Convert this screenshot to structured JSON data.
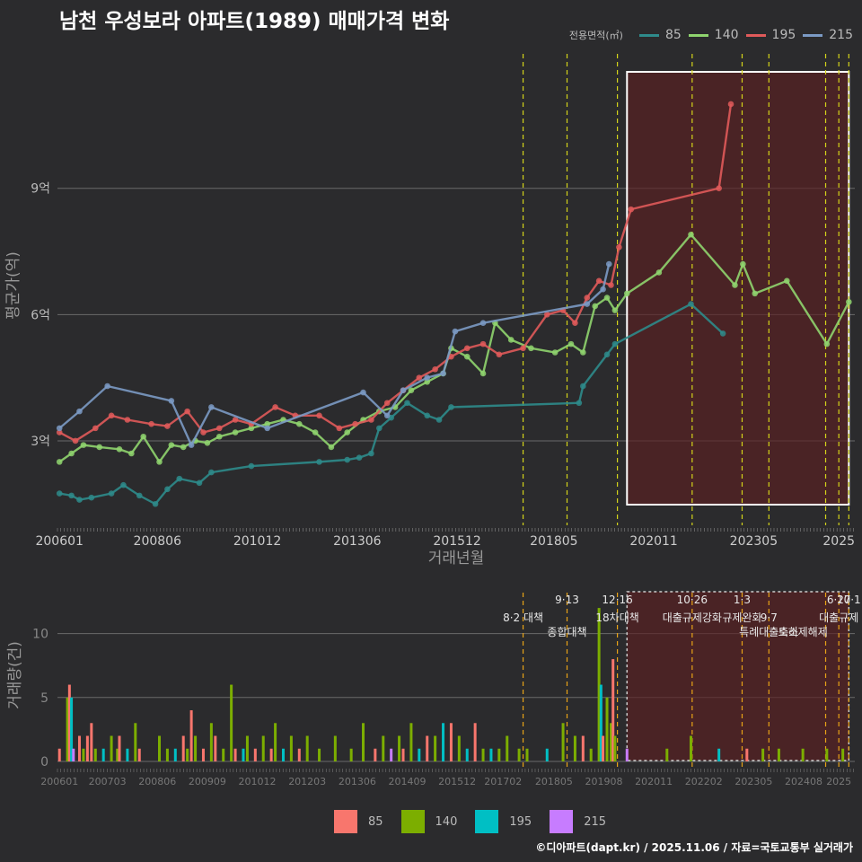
{
  "chart_data": [
    {
      "type": "line",
      "title": "남천 우성보라 아파트(1989) 매매가격 변화",
      "xlabel": "거래년월",
      "ylabel": "평균가(억)",
      "x_tick_labels": [
        "200601",
        "200806",
        "201012",
        "201306",
        "201512",
        "201805",
        "202011",
        "202305",
        "2025"
      ],
      "y_tick_labels": [
        "3억",
        "6억",
        "9억"
      ],
      "y_ticks": [
        3,
        6,
        9
      ],
      "ylim": [
        1.1,
        12.3
      ],
      "xlim": [
        2005.95,
        2025.9
      ],
      "legend_title": "전용면적(㎡)",
      "highlight_range": [
        2020.2,
        2025.75
      ],
      "policy_dates": [
        2017.6,
        2018.7,
        2019.96,
        2021.83,
        2023.08,
        2023.75,
        2025.17,
        2025.5,
        2025.75
      ],
      "series": [
        {
          "name": "85",
          "color": "#2e8b8b",
          "points": [
            [
              2006.0,
              1.75
            ],
            [
              2006.3,
              1.7
            ],
            [
              2006.5,
              1.6
            ],
            [
              2006.8,
              1.65
            ],
            [
              2007.3,
              1.75
            ],
            [
              2007.6,
              1.95
            ],
            [
              2008.0,
              1.7
            ],
            [
              2008.4,
              1.5
            ],
            [
              2008.7,
              1.85
            ],
            [
              2009.0,
              2.1
            ],
            [
              2009.5,
              2.0
            ],
            [
              2009.8,
              2.25
            ],
            [
              2010.8,
              2.4
            ],
            [
              2012.5,
              2.5
            ],
            [
              2013.2,
              2.55
            ],
            [
              2013.5,
              2.6
            ],
            [
              2013.8,
              2.7
            ],
            [
              2014.0,
              3.3
            ],
            [
              2014.3,
              3.55
            ],
            [
              2014.7,
              3.9
            ],
            [
              2015.2,
              3.6
            ],
            [
              2015.5,
              3.5
            ],
            [
              2015.8,
              3.8
            ],
            [
              2019.0,
              3.9
            ],
            [
              2019.1,
              4.3
            ],
            [
              2019.7,
              5.05
            ],
            [
              2019.9,
              5.3
            ],
            [
              2021.8,
              6.25
            ],
            [
              2022.6,
              5.55
            ]
          ]
        },
        {
          "name": "140",
          "color": "#8fd46e",
          "points": [
            [
              2006.0,
              2.5
            ],
            [
              2006.3,
              2.7
            ],
            [
              2006.6,
              2.9
            ],
            [
              2007.0,
              2.85
            ],
            [
              2007.5,
              2.8
            ],
            [
              2007.8,
              2.7
            ],
            [
              2008.1,
              3.1
            ],
            [
              2008.5,
              2.5
            ],
            [
              2008.8,
              2.9
            ],
            [
              2009.1,
              2.85
            ],
            [
              2009.4,
              3.0
            ],
            [
              2009.7,
              2.95
            ],
            [
              2010.0,
              3.1
            ],
            [
              2010.4,
              3.2
            ],
            [
              2010.8,
              3.3
            ],
            [
              2011.2,
              3.4
            ],
            [
              2011.6,
              3.5
            ],
            [
              2012.0,
              3.4
            ],
            [
              2012.4,
              3.2
            ],
            [
              2012.8,
              2.85
            ],
            [
              2013.2,
              3.2
            ],
            [
              2013.6,
              3.5
            ],
            [
              2014.0,
              3.7
            ],
            [
              2014.4,
              3.8
            ],
            [
              2014.8,
              4.2
            ],
            [
              2015.2,
              4.4
            ],
            [
              2015.6,
              4.6
            ],
            [
              2015.8,
              5.2
            ],
            [
              2016.2,
              5.0
            ],
            [
              2016.6,
              4.6
            ],
            [
              2016.9,
              5.8
            ],
            [
              2017.3,
              5.4
            ],
            [
              2017.8,
              5.2
            ],
            [
              2018.4,
              5.1
            ],
            [
              2018.8,
              5.3
            ],
            [
              2019.1,
              5.1
            ],
            [
              2019.4,
              6.2
            ],
            [
              2019.7,
              6.4
            ],
            [
              2019.9,
              6.1
            ],
            [
              2020.2,
              6.5
            ],
            [
              2021.0,
              7.0
            ],
            [
              2021.8,
              7.9
            ],
            [
              2022.9,
              6.7
            ],
            [
              2023.1,
              7.2
            ],
            [
              2023.4,
              6.5
            ],
            [
              2024.2,
              6.8
            ],
            [
              2025.2,
              5.3
            ],
            [
              2025.75,
              6.3
            ]
          ]
        },
        {
          "name": "195",
          "color": "#e05a5a",
          "points": [
            [
              2006.0,
              3.2
            ],
            [
              2006.4,
              3.0
            ],
            [
              2006.9,
              3.3
            ],
            [
              2007.3,
              3.6
            ],
            [
              2007.7,
              3.5
            ],
            [
              2008.3,
              3.4
            ],
            [
              2008.7,
              3.35
            ],
            [
              2009.2,
              3.7
            ],
            [
              2009.6,
              3.2
            ],
            [
              2010.0,
              3.3
            ],
            [
              2010.4,
              3.5
            ],
            [
              2010.8,
              3.4
            ],
            [
              2011.4,
              3.8
            ],
            [
              2011.9,
              3.6
            ],
            [
              2012.5,
              3.6
            ],
            [
              2013.0,
              3.3
            ],
            [
              2013.4,
              3.4
            ],
            [
              2013.8,
              3.5
            ],
            [
              2014.2,
              3.9
            ],
            [
              2014.6,
              4.2
            ],
            [
              2015.0,
              4.5
            ],
            [
              2015.4,
              4.7
            ],
            [
              2015.8,
              5.0
            ],
            [
              2016.2,
              5.2
            ],
            [
              2016.6,
              5.3
            ],
            [
              2017.0,
              5.05
            ],
            [
              2017.6,
              5.2
            ],
            [
              2018.2,
              6.0
            ],
            [
              2018.6,
              6.1
            ],
            [
              2018.9,
              5.8
            ],
            [
              2019.2,
              6.4
            ],
            [
              2019.5,
              6.8
            ],
            [
              2019.8,
              6.7
            ],
            [
              2020.0,
              7.6
            ],
            [
              2020.3,
              8.5
            ],
            [
              2022.5,
              9.0
            ],
            [
              2022.8,
              11.0
            ]
          ]
        },
        {
          "name": "215",
          "color": "#7b9ac4",
          "points": [
            [
              2006.0,
              3.3
            ],
            [
              2006.5,
              3.7
            ],
            [
              2007.2,
              4.3
            ],
            [
              2008.8,
              3.95
            ],
            [
              2009.3,
              2.9
            ],
            [
              2009.8,
              3.8
            ],
            [
              2011.2,
              3.3
            ],
            [
              2013.6,
              4.15
            ],
            [
              2014.2,
              3.6
            ],
            [
              2014.6,
              4.2
            ],
            [
              2015.2,
              4.5
            ],
            [
              2015.6,
              4.6
            ],
            [
              2015.9,
              5.6
            ],
            [
              2016.6,
              5.8
            ],
            [
              2019.2,
              6.25
            ],
            [
              2019.6,
              6.6
            ],
            [
              2019.75,
              7.2
            ]
          ]
        }
      ]
    },
    {
      "type": "bar",
      "xlabel": "",
      "ylabel": "거래량(건)",
      "x_tick_labels": [
        "200601",
        "200703",
        "200806",
        "200909",
        "201012",
        "201203",
        "201306",
        "201409",
        "201512",
        "201702",
        "201805",
        "201908",
        "202011",
        "202202",
        "202305",
        "202408",
        "2025"
      ],
      "y_tick_labels": [
        "0",
        "5",
        "10"
      ],
      "y_ticks": [
        0,
        5,
        10
      ],
      "ylim": [
        0,
        13.2
      ],
      "series_names": [
        "85",
        "140",
        "195",
        "215"
      ],
      "colors": [
        "#f8766d",
        "#7cae00",
        "#00bfc4",
        "#c77cff"
      ],
      "highlight_range": [
        2020.2,
        2025.75
      ],
      "bars": [
        [
          2006.0,
          0,
          1
        ],
        [
          2006.2,
          1,
          5
        ],
        [
          2006.25,
          0,
          6
        ],
        [
          2006.3,
          2,
          5
        ],
        [
          2006.35,
          3,
          1
        ],
        [
          2006.5,
          0,
          2
        ],
        [
          2006.6,
          1,
          1
        ],
        [
          2006.7,
          0,
          2
        ],
        [
          2006.8,
          0,
          3
        ],
        [
          2006.9,
          1,
          1
        ],
        [
          2007.1,
          2,
          1
        ],
        [
          2007.3,
          1,
          2
        ],
        [
          2007.45,
          1,
          1
        ],
        [
          2007.5,
          0,
          2
        ],
        [
          2007.7,
          2,
          1
        ],
        [
          2007.9,
          1,
          3
        ],
        [
          2008.0,
          0,
          1
        ],
        [
          2008.5,
          1,
          2
        ],
        [
          2008.7,
          1,
          1
        ],
        [
          2008.9,
          2,
          1
        ],
        [
          2009.1,
          0,
          2
        ],
        [
          2009.2,
          1,
          1
        ],
        [
          2009.3,
          0,
          4
        ],
        [
          2009.4,
          1,
          2
        ],
        [
          2009.6,
          0,
          1
        ],
        [
          2009.8,
          1,
          3
        ],
        [
          2009.9,
          0,
          2
        ],
        [
          2010.1,
          1,
          1
        ],
        [
          2010.3,
          1,
          6
        ],
        [
          2010.4,
          0,
          1
        ],
        [
          2010.6,
          2,
          1
        ],
        [
          2010.7,
          1,
          2
        ],
        [
          2010.9,
          0,
          1
        ],
        [
          2011.1,
          1,
          2
        ],
        [
          2011.3,
          0,
          1
        ],
        [
          2011.4,
          1,
          3
        ],
        [
          2011.6,
          2,
          1
        ],
        [
          2011.8,
          1,
          2
        ],
        [
          2012.0,
          0,
          1
        ],
        [
          2012.2,
          1,
          2
        ],
        [
          2012.5,
          1,
          1
        ],
        [
          2012.9,
          1,
          2
        ],
        [
          2013.3,
          1,
          1
        ],
        [
          2013.6,
          1,
          3
        ],
        [
          2013.9,
          0,
          1
        ],
        [
          2014.1,
          1,
          2
        ],
        [
          2014.3,
          3,
          1
        ],
        [
          2014.5,
          1,
          2
        ],
        [
          2014.6,
          0,
          1
        ],
        [
          2014.8,
          1,
          3
        ],
        [
          2015.0,
          2,
          1
        ],
        [
          2015.2,
          0,
          2
        ],
        [
          2015.4,
          1,
          2
        ],
        [
          2015.6,
          2,
          3
        ],
        [
          2015.8,
          0,
          3
        ],
        [
          2016.0,
          1,
          2
        ],
        [
          2016.2,
          2,
          1
        ],
        [
          2016.4,
          0,
          3
        ],
        [
          2016.6,
          1,
          1
        ],
        [
          2016.8,
          2,
          1
        ],
        [
          2017.0,
          1,
          1
        ],
        [
          2017.2,
          1,
          2
        ],
        [
          2017.5,
          1,
          1
        ],
        [
          2017.7,
          1,
          1
        ],
        [
          2018.2,
          2,
          1
        ],
        [
          2018.6,
          1,
          3
        ],
        [
          2018.9,
          1,
          2
        ],
        [
          2019.1,
          0,
          2
        ],
        [
          2019.3,
          1,
          1
        ],
        [
          2019.5,
          1,
          12
        ],
        [
          2019.55,
          2,
          6
        ],
        [
          2019.6,
          0,
          2
        ],
        [
          2019.7,
          1,
          5
        ],
        [
          2019.8,
          1,
          3
        ],
        [
          2019.85,
          0,
          8
        ],
        [
          2019.9,
          1,
          2
        ],
        [
          2020.2,
          3,
          1
        ],
        [
          2021.2,
          1,
          1
        ],
        [
          2021.8,
          1,
          2
        ],
        [
          2022.5,
          2,
          1
        ],
        [
          2023.2,
          0,
          1
        ],
        [
          2023.6,
          1,
          1
        ],
        [
          2024.0,
          1,
          1
        ],
        [
          2024.6,
          1,
          1
        ],
        [
          2025.2,
          1,
          1
        ],
        [
          2025.6,
          1,
          1
        ]
      ],
      "annotations": [
        {
          "x": 2017.6,
          "text": "8·2 대책",
          "row": 0
        },
        {
          "x": 2018.7,
          "text": "9·13",
          "row": -1
        },
        {
          "x": 2018.7,
          "text": "종합대책",
          "row": 1
        },
        {
          "x": 2019.96,
          "text": "12·16",
          "row": -1
        },
        {
          "x": 2019.96,
          "text": "18차대책",
          "row": 0
        },
        {
          "x": 2021.83,
          "text": "10·26",
          "row": -1
        },
        {
          "x": 2021.83,
          "text": "대출규제강화",
          "row": 0
        },
        {
          "x": 2023.08,
          "text": "1·3",
          "row": -1
        },
        {
          "x": 2023.08,
          "text": "규제완화",
          "row": 0
        },
        {
          "x": 2023.75,
          "text": "9·7",
          "row": 0
        },
        {
          "x": 2023.75,
          "text": "특례대출축소",
          "row": 1
        },
        {
          "x": 2024.6,
          "text": "토허제해제",
          "row": 1
        },
        {
          "x": 2025.5,
          "text": "6·27",
          "row": -1
        },
        {
          "x": 2025.75,
          "text": "10·1",
          "row": -1
        },
        {
          "x": 2025.5,
          "text": "대출규제",
          "row": 0
        }
      ]
    }
  ],
  "legend_top": {
    "title": "전용면적(㎡)",
    "items": [
      "85",
      "140",
      "195",
      "215"
    ]
  },
  "legend_bottom": {
    "items": [
      "85",
      "140",
      "195",
      "215"
    ]
  },
  "footer": "©디아파트(dapt.kr) / 2025.11.06 / 자료=국토교통부 실거래가"
}
